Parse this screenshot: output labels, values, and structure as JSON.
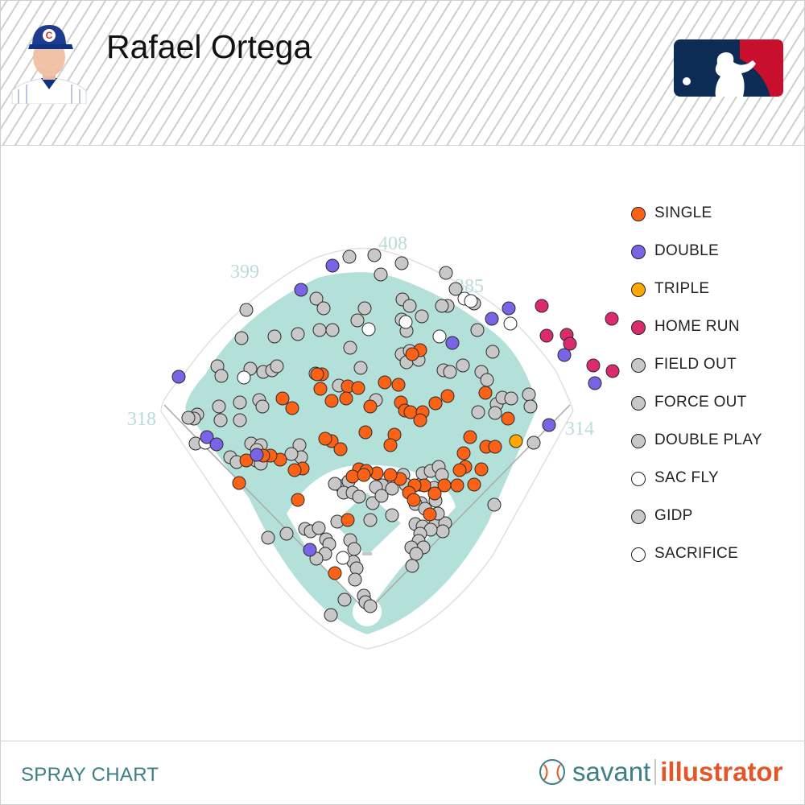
{
  "header": {
    "player_name": "Rafael Ortega",
    "team_cap_letter": "C"
  },
  "footer": {
    "title": "SPRAY CHART",
    "brand_left": "savant",
    "brand_right": "illustrator"
  },
  "colors": {
    "single": "#fc6215",
    "double": "#7a64e6",
    "triple": "#ffa800",
    "home_run": "#d92b6d",
    "out": "#c8c8c8",
    "white": "#ffffff",
    "field": "#b4e0da",
    "infield": "#ffffff",
    "accent_teal": "#3e7f86",
    "accent_orange": "#e2562a",
    "mlb_blue": "#0c2c56",
    "mlb_red": "#c8102e"
  },
  "legend": [
    {
      "label": "SINGLE",
      "color": "#fc6215"
    },
    {
      "label": "DOUBLE",
      "color": "#7a64e6"
    },
    {
      "label": "TRIPLE",
      "color": "#ffa800"
    },
    {
      "label": "HOME RUN",
      "color": "#d92b6d"
    },
    {
      "label": "FIELD OUT",
      "color": "#c8c8c8"
    },
    {
      "label": "FORCE OUT",
      "color": "#c8c8c8"
    },
    {
      "label": "DOUBLE PLAY",
      "color": "#c8c8c8"
    },
    {
      "label": "SAC FLY",
      "color": "#ffffff"
    },
    {
      "label": "GIDP",
      "color": "#c8c8c8"
    },
    {
      "label": "SACRIFICE",
      "color": "#ffffff"
    }
  ],
  "chart_data": {
    "type": "scatter",
    "title": "SPRAY CHART",
    "distance_labels": [
      {
        "text": "399",
        "location": "left-center"
      },
      {
        "text": "408",
        "location": "center"
      },
      {
        "text": "385",
        "location": "right-center"
      },
      {
        "text": "318",
        "location": "left-field-line"
      },
      {
        "text": "314",
        "location": "right-field-line"
      }
    ],
    "categories": [
      "single",
      "double",
      "triple",
      "home_run",
      "out",
      "white"
    ],
    "points": {
      "single": [
        [
          400,
          465
        ],
        [
          398,
          483
        ],
        [
          412,
          498
        ],
        [
          432,
          480
        ],
        [
          430,
          495
        ],
        [
          445,
          482
        ],
        [
          460,
          505
        ],
        [
          478,
          475
        ],
        [
          495,
          478
        ],
        [
          498,
          500
        ],
        [
          503,
          510
        ],
        [
          522,
          435
        ],
        [
          512,
          440
        ],
        [
          510,
          512
        ],
        [
          525,
          512
        ],
        [
          522,
          522
        ],
        [
          541,
          501
        ],
        [
          556,
          492
        ],
        [
          603,
          488
        ],
        [
          631,
          520
        ],
        [
          584,
          543
        ],
        [
          604,
          555
        ],
        [
          615,
          555
        ],
        [
          576,
          563
        ],
        [
          578,
          580
        ],
        [
          571,
          584
        ],
        [
          589,
          602
        ],
        [
          598,
          583
        ],
        [
          568,
          603
        ],
        [
          552,
          603
        ],
        [
          540,
          613
        ],
        [
          527,
          603
        ],
        [
          515,
          603
        ],
        [
          508,
          612
        ],
        [
          497,
          595
        ],
        [
          485,
          590
        ],
        [
          468,
          588
        ],
        [
          446,
          583
        ],
        [
          455,
          585
        ],
        [
          438,
          592
        ],
        [
          490,
          540
        ],
        [
          485,
          553
        ],
        [
          454,
          537
        ],
        [
          412,
          548
        ],
        [
          404,
          545
        ],
        [
          423,
          558
        ],
        [
          363,
          507
        ],
        [
          351,
          495
        ],
        [
          394,
          465
        ],
        [
          376,
          582
        ],
        [
          366,
          584
        ],
        [
          348,
          571
        ],
        [
          336,
          566
        ],
        [
          327,
          566
        ],
        [
          306,
          572
        ],
        [
          297,
          600
        ],
        [
          370,
          621
        ],
        [
          432,
          646
        ],
        [
          416,
          712
        ],
        [
          514,
          621
        ],
        [
          534,
          639
        ],
        [
          452,
          590
        ]
      ],
      "double": [
        [
          413,
          330
        ],
        [
          374,
          360
        ],
        [
          222,
          468
        ],
        [
          257,
          543
        ],
        [
          269,
          552
        ],
        [
          319,
          565
        ],
        [
          562,
          426
        ],
        [
          611,
          396
        ],
        [
          632,
          383
        ],
        [
          701,
          441
        ],
        [
          739,
          476
        ],
        [
          682,
          528
        ],
        [
          385,
          683
        ]
      ],
      "triple": [
        [
          641,
          548
        ]
      ],
      "home_run": [
        [
          673,
          380
        ],
        [
          679,
          417
        ],
        [
          704,
          416
        ],
        [
          708,
          427
        ],
        [
          737,
          454
        ],
        [
          760,
          396
        ],
        [
          761,
          461
        ]
      ],
      "out": [
        [
          434,
          319
        ],
        [
          465,
          317
        ],
        [
          499,
          327
        ],
        [
          473,
          341
        ],
        [
          554,
          339
        ],
        [
          566,
          359
        ],
        [
          306,
          385
        ],
        [
          393,
          371
        ],
        [
          402,
          383
        ],
        [
          453,
          383
        ],
        [
          444,
          398
        ],
        [
          500,
          372
        ],
        [
          509,
          380
        ],
        [
          524,
          393
        ],
        [
          499,
          397
        ],
        [
          505,
          411
        ],
        [
          413,
          410
        ],
        [
          397,
          410
        ],
        [
          370,
          415
        ],
        [
          341,
          418
        ],
        [
          300,
          420
        ],
        [
          435,
          432
        ],
        [
          499,
          440
        ],
        [
          509,
          436
        ],
        [
          505,
          450
        ],
        [
          520,
          447
        ],
        [
          556,
          380
        ],
        [
          549,
          380
        ],
        [
          589,
          377
        ],
        [
          593,
          410
        ],
        [
          612,
          437
        ],
        [
          575,
          454
        ],
        [
          551,
          460
        ],
        [
          559,
          462
        ],
        [
          598,
          462
        ],
        [
          605,
          472
        ],
        [
          617,
          502
        ],
        [
          624,
          494
        ],
        [
          635,
          495
        ],
        [
          657,
          490
        ],
        [
          659,
          505
        ],
        [
          663,
          550
        ],
        [
          614,
          627
        ],
        [
          270,
          455
        ],
        [
          275,
          467
        ],
        [
          311,
          458
        ],
        [
          327,
          462
        ],
        [
          338,
          460
        ],
        [
          344,
          455
        ],
        [
          392,
          464
        ],
        [
          448,
          457
        ],
        [
          421,
          479
        ],
        [
          467,
          497
        ],
        [
          245,
          515
        ],
        [
          241,
          520
        ],
        [
          234,
          519
        ],
        [
          272,
          505
        ],
        [
          298,
          500
        ],
        [
          322,
          497
        ],
        [
          326,
          505
        ],
        [
          274,
          522
        ],
        [
          298,
          522
        ],
        [
          243,
          551
        ],
        [
          312,
          551
        ],
        [
          324,
          553
        ],
        [
          319,
          559
        ],
        [
          372,
          553
        ],
        [
          374,
          568
        ],
        [
          286,
          568
        ],
        [
          318,
          572
        ],
        [
          294,
          574
        ],
        [
          324,
          576
        ],
        [
          362,
          564
        ],
        [
          424,
          604
        ],
        [
          433,
          598
        ],
        [
          416,
          601
        ],
        [
          427,
          612
        ],
        [
          438,
          612
        ],
        [
          446,
          617
        ],
        [
          475,
          603
        ],
        [
          501,
          590
        ],
        [
          504,
          602
        ],
        [
          522,
          602
        ],
        [
          525,
          588
        ],
        [
          535,
          585
        ],
        [
          545,
          580
        ],
        [
          549,
          590
        ],
        [
          539,
          606
        ],
        [
          541,
          622
        ],
        [
          523,
          625
        ],
        [
          516,
          626
        ],
        [
          528,
          632
        ],
        [
          463,
          625
        ],
        [
          487,
          640
        ],
        [
          467,
          605
        ],
        [
          474,
          616
        ],
        [
          487,
          607
        ],
        [
          516,
          651
        ],
        [
          525,
          654
        ],
        [
          541,
          651
        ],
        [
          553,
          650
        ],
        [
          550,
          660
        ],
        [
          535,
          658
        ],
        [
          522,
          663
        ],
        [
          544,
          638
        ],
        [
          520,
          672
        ],
        [
          526,
          680
        ],
        [
          511,
          680
        ],
        [
          517,
          688
        ],
        [
          512,
          703
        ],
        [
          333,
          668
        ],
        [
          356,
          663
        ],
        [
          379,
          657
        ],
        [
          386,
          660
        ],
        [
          396,
          656
        ],
        [
          405,
          670
        ],
        [
          409,
          676
        ],
        [
          404,
          688
        ],
        [
          393,
          694
        ],
        [
          419,
          648
        ],
        [
          435,
          671
        ],
        [
          440,
          682
        ],
        [
          439,
          698
        ],
        [
          443,
          706
        ],
        [
          460,
          646
        ],
        [
          441,
          720
        ],
        [
          428,
          745
        ],
        [
          452,
          740
        ],
        [
          454,
          748
        ],
        [
          460,
          753
        ],
        [
          411,
          764
        ],
        [
          541,
          501
        ],
        [
          594,
          512
        ],
        [
          615,
          513
        ]
      ],
      "white": [
        [
          577,
          371
        ],
        [
          585,
          374
        ],
        [
          634,
          402
        ],
        [
          458,
          409
        ],
        [
          504,
          400
        ],
        [
          546,
          418
        ],
        [
          303,
          469
        ],
        [
          255,
          550
        ],
        [
          426,
          693
        ]
      ]
    }
  }
}
